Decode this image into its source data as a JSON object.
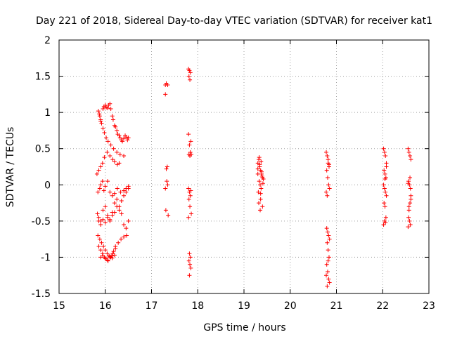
{
  "chart_data": {
    "type": "scatter",
    "title": "Day 221 of 2018, Sidereal Day-to-day VTEC variation (SDTVAR) for receiver kat1",
    "xlabel": "GPS time / hours",
    "ylabel": "SDTVAR / TECUs",
    "xlim": [
      15,
      23
    ],
    "ylim": [
      -1.5,
      2
    ],
    "xticks": [
      "15",
      "16",
      "17",
      "18",
      "19",
      "20",
      "21",
      "22",
      "23"
    ],
    "yticks": [
      "-1.5",
      "-1",
      "-0.5",
      "0",
      "0.5",
      "1",
      "1.5",
      "2"
    ],
    "grid": "dotted",
    "marker": "+",
    "color": "#ff0000",
    "series": [
      {
        "name": "kat1",
        "x": [
          15.85,
          15.87,
          15.9,
          15.92,
          15.95,
          15.97,
          16.0,
          16.02,
          16.05,
          16.07,
          16.1,
          16.12,
          16.15,
          16.17,
          16.2,
          16.22,
          16.25,
          16.27,
          16.3,
          16.32,
          16.35,
          16.37,
          16.4,
          16.43,
          16.46,
          16.5,
          15.88,
          15.9,
          15.95,
          15.98,
          16.02,
          16.06,
          16.12,
          16.18,
          16.25,
          16.32,
          16.4,
          16.48,
          15.82,
          15.86,
          15.9,
          15.94,
          15.98,
          16.04,
          16.1,
          16.16,
          16.2,
          16.26,
          16.3,
          15.84,
          15.88,
          15.9,
          15.94,
          15.97,
          16.0,
          16.05,
          16.1,
          16.15,
          16.2,
          16.26,
          16.33,
          16.4,
          16.45,
          16.5,
          15.83,
          15.86,
          15.9,
          15.95,
          16.0,
          16.05,
          16.1,
          16.15,
          16.2,
          16.25,
          16.3,
          16.35,
          16.4,
          16.45,
          16.5,
          15.86,
          15.9,
          15.95,
          16.0,
          16.05,
          16.1,
          16.15,
          16.2,
          16.25,
          16.3,
          16.35,
          16.4,
          16.45,
          16.5,
          15.84,
          15.88,
          15.92,
          15.96,
          16.0,
          16.04,
          16.08,
          16.12,
          16.16,
          16.22,
          16.28,
          16.34,
          16.4,
          16.46,
          15.86,
          15.9,
          15.94,
          15.98,
          16.02,
          16.06,
          16.1,
          16.14,
          16.18,
          16.22,
          15.9,
          15.95,
          16.0,
          16.05,
          16.1,
          16.15,
          16.2,
          17.3,
          17.32,
          17.35,
          17.3,
          17.34,
          17.32,
          17.33,
          17.35,
          17.3,
          17.31,
          17.36,
          17.8,
          17.82,
          17.84,
          17.81,
          17.83,
          17.8,
          17.85,
          17.82,
          17.84,
          17.81,
          17.83,
          17.86,
          17.8,
          17.82,
          17.85,
          17.84,
          17.81,
          17.83,
          17.86,
          17.8,
          17.82,
          17.84,
          17.81,
          17.83,
          17.85,
          17.82,
          19.3,
          19.32,
          19.34,
          19.36,
          19.38,
          19.4,
          19.33,
          19.35,
          19.37,
          19.31,
          19.39,
          19.42,
          19.3,
          19.34,
          19.38,
          19.36,
          19.32,
          19.4,
          19.35,
          19.33,
          19.37,
          19.41,
          19.3,
          19.36,
          20.78,
          20.8,
          20.82,
          20.84,
          20.79,
          20.81,
          20.83,
          20.85,
          20.78,
          20.8,
          20.82,
          20.84,
          20.79,
          20.81,
          20.83,
          20.85,
          20.8,
          20.82,
          20.84,
          20.79,
          20.81,
          20.83,
          20.78,
          20.85,
          20.8,
          20.82,
          22.02,
          22.04,
          22.06,
          22.08,
          22.03,
          22.05,
          22.07,
          22.02,
          22.04,
          22.06,
          22.08,
          22.03,
          22.05,
          22.07,
          22.04,
          22.06,
          22.02,
          22.08,
          22.05,
          22.55,
          22.57,
          22.59,
          22.61,
          22.56,
          22.58,
          22.6,
          22.55,
          22.57,
          22.59,
          22.61,
          22.56,
          22.58,
          22.6,
          22.57,
          22.59,
          22.55,
          22.61
        ],
        "y": [
          1.02,
          0.98,
          0.9,
          0.85,
          1.05,
          1.08,
          1.1,
          1.07,
          1.06,
          1.1,
          1.12,
          1.05,
          0.95,
          0.9,
          0.82,
          0.8,
          0.75,
          0.7,
          0.68,
          0.65,
          0.62,
          0.6,
          0.64,
          0.68,
          0.66,
          0.65,
          0.95,
          0.88,
          0.78,
          0.72,
          0.65,
          0.6,
          0.55,
          0.5,
          0.45,
          0.42,
          0.4,
          0.62,
          0.15,
          0.2,
          0.25,
          0.3,
          0.38,
          0.45,
          0.4,
          0.35,
          0.32,
          0.28,
          0.3,
          -0.1,
          -0.05,
          0.0,
          0.05,
          -0.08,
          -0.02,
          0.05,
          -0.1,
          -0.15,
          -0.12,
          -0.05,
          -0.1,
          -0.08,
          -0.05,
          -0.02,
          -0.4,
          -0.45,
          -0.5,
          -0.35,
          -0.3,
          -0.42,
          -0.48,
          -0.38,
          -0.25,
          -0.2,
          -0.3,
          -0.22,
          -0.15,
          -0.1,
          -0.05,
          -0.5,
          -0.55,
          -0.48,
          -0.52,
          -0.45,
          -0.5,
          -0.42,
          -0.38,
          -0.3,
          -0.35,
          -0.4,
          -0.55,
          -0.6,
          -0.5,
          -0.7,
          -0.75,
          -0.8,
          -0.85,
          -0.9,
          -0.95,
          -0.98,
          -1.0,
          -0.95,
          -0.85,
          -0.8,
          -0.75,
          -0.72,
          -0.7,
          -0.85,
          -0.9,
          -0.95,
          -1.0,
          -1.02,
          -1.05,
          -1.0,
          -0.98,
          -0.92,
          -0.88,
          -1.0,
          -0.98,
          -1.02,
          -1.04,
          -0.99,
          -1.01,
          -0.97,
          1.38,
          1.4,
          1.38,
          1.25,
          0.25,
          0.22,
          0.05,
          0.0,
          -0.05,
          -0.35,
          -0.42,
          1.6,
          1.58,
          1.55,
          1.5,
          1.45,
          0.7,
          0.6,
          0.55,
          0.45,
          0.42,
          0.4,
          0.42,
          -0.05,
          -0.1,
          -0.08,
          -0.15,
          -0.2,
          -0.3,
          -0.4,
          -0.45,
          -0.95,
          -1.0,
          -1.05,
          -1.1,
          -1.15,
          -1.25,
          0.3,
          0.35,
          0.25,
          0.2,
          0.15,
          0.1,
          0.05,
          0.0,
          -0.05,
          -0.1,
          0.12,
          0.08,
          0.22,
          0.28,
          0.18,
          -0.2,
          -0.25,
          -0.3,
          -0.35,
          0.38,
          0.32,
          0.02,
          0.15,
          -0.12,
          0.45,
          0.4,
          0.3,
          0.25,
          0.2,
          0.1,
          0.0,
          -0.05,
          -0.1,
          -0.15,
          0.35,
          0.28,
          -0.6,
          -0.65,
          -0.7,
          -0.75,
          -0.8,
          -0.9,
          -1.0,
          -1.1,
          -1.2,
          -1.3,
          -1.25,
          -1.35,
          -1.4,
          -1.05,
          0.5,
          0.45,
          0.4,
          0.3,
          0.2,
          0.15,
          0.1,
          0.0,
          -0.05,
          -0.1,
          -0.15,
          -0.25,
          -0.3,
          -0.45,
          -0.5,
          -0.52,
          -0.55,
          0.25,
          0.08,
          0.5,
          0.45,
          0.4,
          0.35,
          0.05,
          0.0,
          -0.05,
          0.02,
          -0.3,
          -0.25,
          -0.2,
          -0.45,
          -0.5,
          -0.55,
          -0.35,
          0.1,
          -0.58,
          -0.15
        ]
      }
    ]
  }
}
